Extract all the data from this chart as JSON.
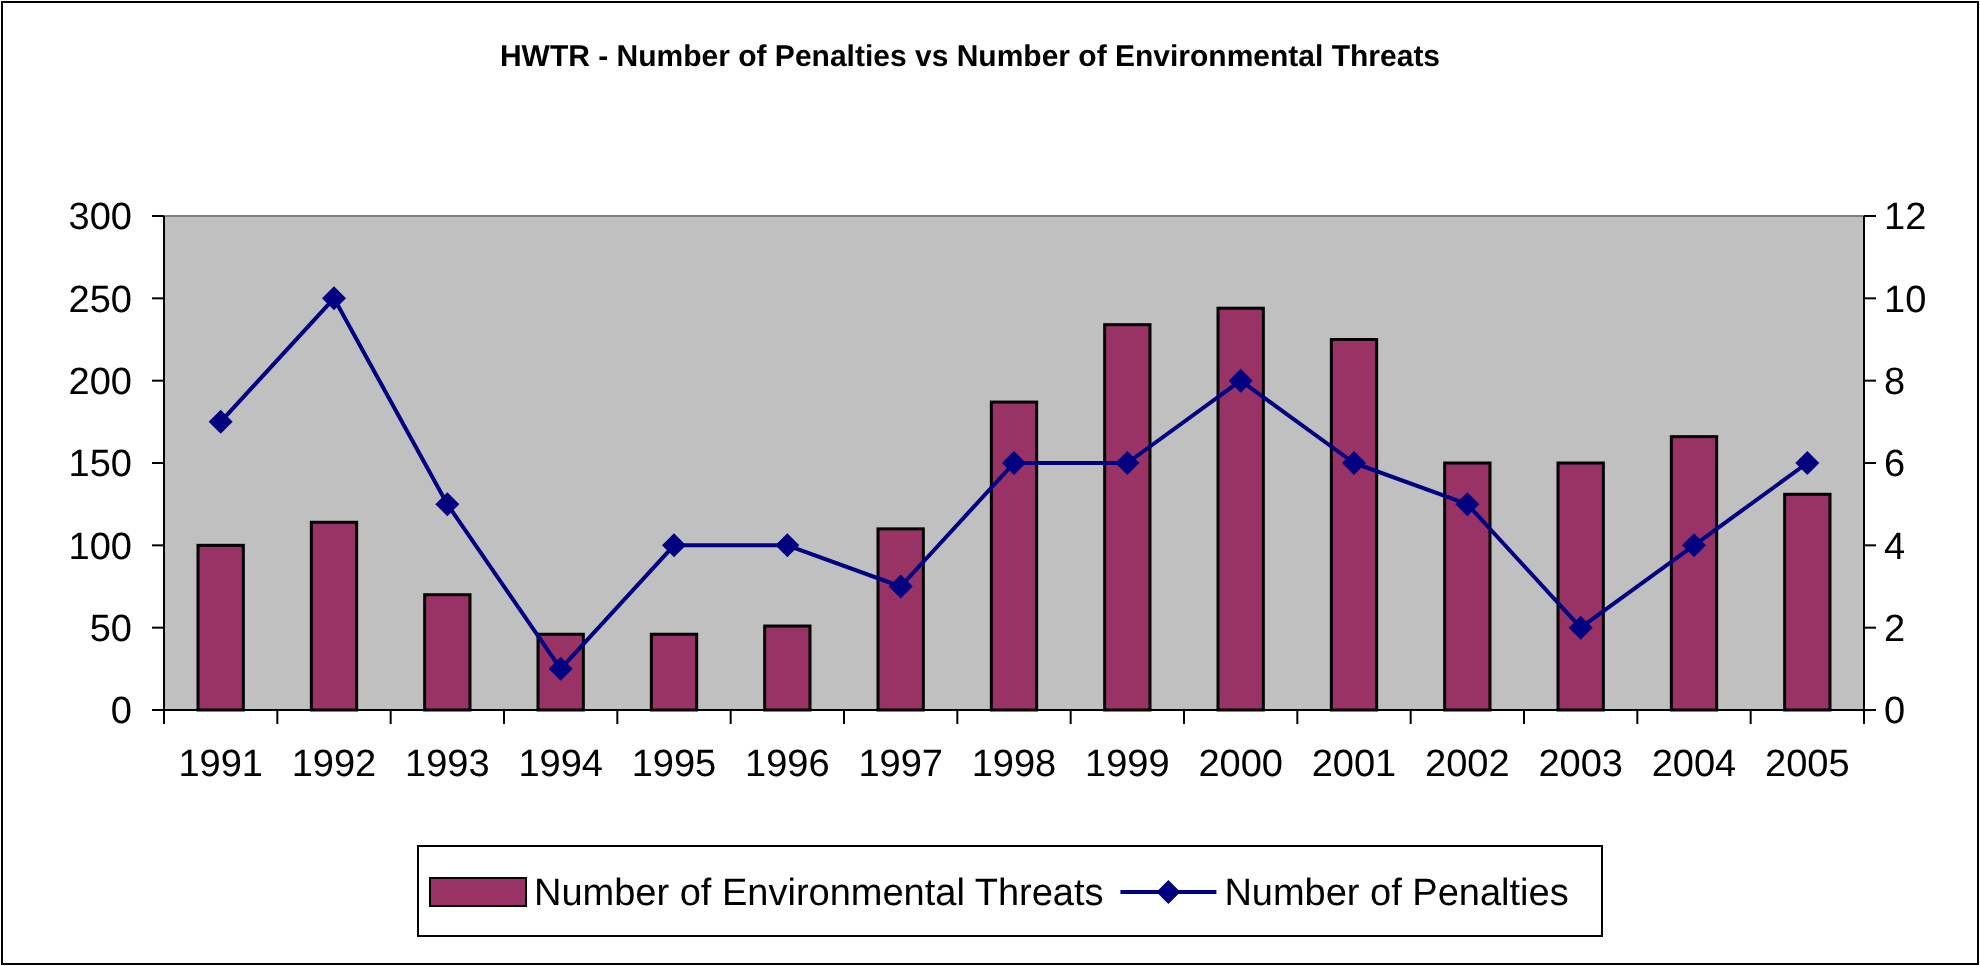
{
  "chart_data": {
    "type": "bar",
    "title": "HWTR - Number of Penalties vs Number of Environmental Threats",
    "categories": [
      "1991",
      "1992",
      "1993",
      "1994",
      "1995",
      "1996",
      "1997",
      "1998",
      "1999",
      "2000",
      "2001",
      "2002",
      "2003",
      "2004",
      "2005"
    ],
    "series": [
      {
        "name": "Number of Environmental Threats",
        "color": "#993366",
        "values": [
          100,
          114,
          70,
          46,
          46,
          51,
          110,
          187,
          234,
          244,
          225,
          150,
          150,
          166,
          131
        ]
      },
      {
        "name": "Number of Penalties",
        "type": "line",
        "axis": "y2",
        "color": "#000080",
        "marker": "diamond",
        "values": [
          7,
          10,
          5,
          1,
          4,
          4,
          3,
          6,
          6,
          8,
          6,
          5,
          2,
          4,
          6
        ]
      }
    ],
    "ylim": [
      0,
      300
    ],
    "yticks": [
      0,
      50,
      100,
      150,
      200,
      250,
      300
    ],
    "y2lim": [
      0,
      12
    ],
    "y2ticks": [
      0,
      2,
      4,
      6,
      8,
      10,
      12
    ],
    "grid": false,
    "legend": "bottom"
  }
}
